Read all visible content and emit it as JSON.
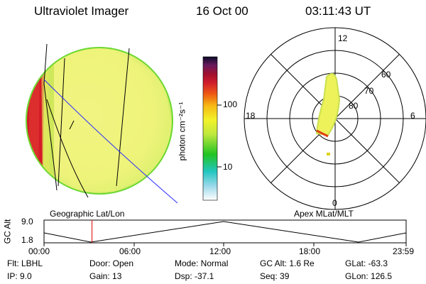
{
  "header": {
    "title": "Ultraviolet Imager",
    "date": "16 Oct 00",
    "time": "03:11:43 UT"
  },
  "colorbar": {
    "unit_label": "photon cm⁻²s⁻¹",
    "ticks": [
      "100",
      "10"
    ]
  },
  "polar": {
    "mlt_labels": [
      "12",
      "18",
      "6",
      "0"
    ],
    "mlat_labels": [
      "60",
      "70",
      "80"
    ]
  },
  "panels": {
    "left_label": "Geographic Lat/Lon",
    "right_label": "Apex MLat/MLT"
  },
  "altitude_plot": {
    "axis_label": "GC Alt",
    "y_ticks": [
      "9.0",
      "1.8"
    ],
    "x_ticks": [
      "00:00",
      "06:00",
      "12:00",
      "18:00",
      "23:59"
    ],
    "current_time_fraction": 0.1325
  },
  "status": {
    "flt": "Flt: LBHL",
    "ip": "IP:  9.0",
    "door": "Door: Open",
    "gain": "Gain: 13",
    "mode": "Mode: Normal",
    "dsp": "Dsp:  -37.1",
    "gc_alt": "GC Alt: 1.6 Re",
    "seq": "Seq: 39",
    "glat": "GLat: -63.3",
    "glon": "GLon: 126.5"
  },
  "colors": {
    "background": "#ffffff",
    "map_line_blue": "#2b2bff",
    "time_marker": "#e00000",
    "earth_yellow": "#f2f27a",
    "earth_green": "#c2ea5a",
    "dayside_red": "#d41a28"
  }
}
